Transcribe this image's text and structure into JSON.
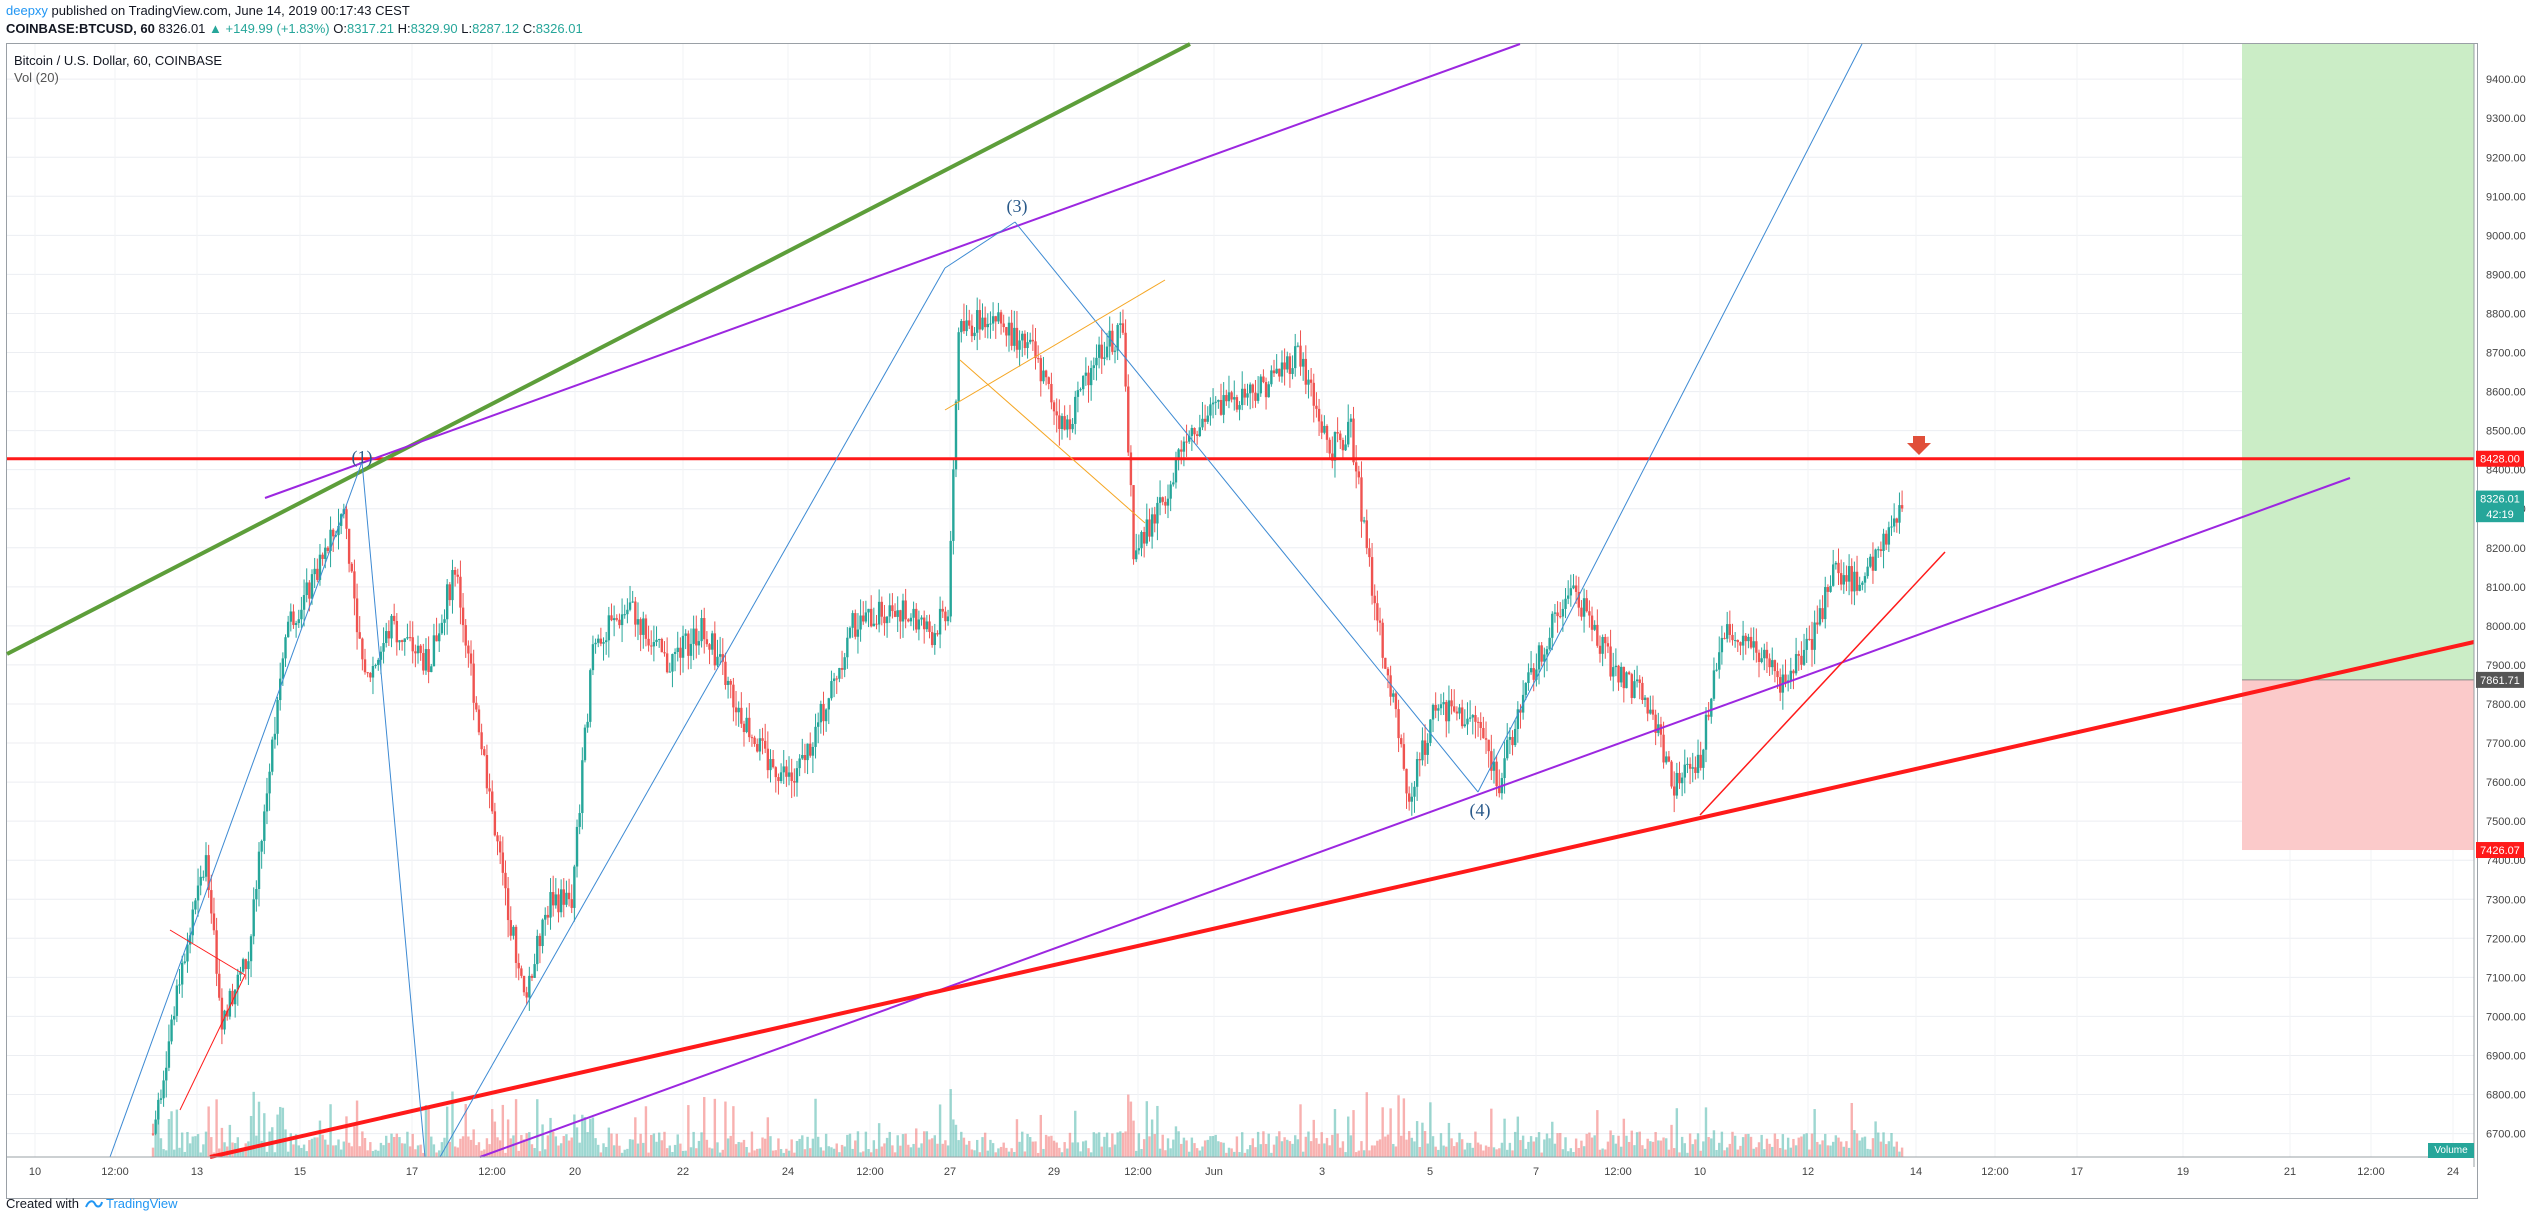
{
  "header": {
    "author": "deepxy",
    "published": "published on TradingView.com, June 14, 2019 00:17:43 CEST",
    "symbol": "COINBASE:BTCUSD, 60",
    "last": "8326.01",
    "change": "▲ +149.99 (+1.83%)",
    "o_label": "O:",
    "o": "8317.21",
    "h_label": "H:",
    "h": "8329.90",
    "l_label": "L:",
    "l": "8287.12",
    "c_label": "C:",
    "c": "8326.01"
  },
  "pane": {
    "title": "Bitcoin / U.S. Dollar, 60, COINBASE",
    "volume_indicator": "Vol (20)",
    "volume_badge": "Volume"
  },
  "footer": {
    "created_with": "Created with",
    "brand": "TradingView"
  },
  "colors": {
    "up": "#26a69a",
    "down": "#ef5350",
    "resistance": "#ff1a1a",
    "channel": "#9c27e0",
    "trend_green": "#5d9e3a",
    "wave": "#3d8ad3",
    "target_zone": "#c8ecc3",
    "stop_zone": "#fbcaca"
  },
  "chart_data": {
    "type": "candlestick",
    "symbol": "BTCUSD",
    "exchange": "COINBASE",
    "interval": "60",
    "ylim": [
      6640,
      9490
    ],
    "y_ticks": [
      "9400.00",
      "9300.00",
      "9200.00",
      "9100.00",
      "9000.00",
      "8900.00",
      "8800.00",
      "8700.00",
      "8600.00",
      "8500.00",
      "8400.00",
      "8300.00",
      "8200.00",
      "8100.00",
      "8000.00",
      "7900.00",
      "7800.00",
      "7700.00",
      "7600.00",
      "7500.00",
      "7400.00",
      "7300.00",
      "7200.00",
      "7100.00",
      "7000.00",
      "6900.00",
      "6800.00",
      "6700.00"
    ],
    "x_ticks": [
      "10",
      "12:00",
      "13",
      "15",
      "17",
      "12:00",
      "20",
      "22",
      "24",
      "12:00",
      "27",
      "29",
      "12:00",
      "Jun",
      "3",
      "5",
      "7",
      "12:00",
      "10",
      "12",
      "14",
      "12:00",
      "17",
      "19",
      "21",
      "12:00",
      "24"
    ],
    "price_labels": [
      {
        "value": 8428.0,
        "text": "8428.00",
        "color": "#ff1a1a"
      },
      {
        "value": 8326.01,
        "text": "8326.01",
        "color": "#26a69a"
      },
      {
        "value": 8286.0,
        "text": "42:19",
        "color": "#26a69a"
      },
      {
        "value": 7861.71,
        "text": "7861.71",
        "color": "#555555"
      },
      {
        "value": 7426.07,
        "text": "7426.07",
        "color": "#ff1a1a"
      }
    ],
    "wave_labels": [
      "(1)",
      "(3)",
      "(4)"
    ],
    "key_path": [
      {
        "t": 0,
        "p": 6700
      },
      {
        "t": 5,
        "p": 7100
      },
      {
        "t": 10,
        "p": 7400
      },
      {
        "t": 13,
        "p": 7000
      },
      {
        "t": 18,
        "p": 7150
      },
      {
        "t": 25,
        "p": 8000
      },
      {
        "t": 30,
        "p": 8100
      },
      {
        "t": 36,
        "p": 8300
      },
      {
        "t": 40,
        "p": 7850
      },
      {
        "t": 45,
        "p": 8000
      },
      {
        "t": 52,
        "p": 7900
      },
      {
        "t": 57,
        "p": 8150
      },
      {
        "t": 62,
        "p": 7700
      },
      {
        "t": 66,
        "p": 7350
      },
      {
        "t": 70,
        "p": 7050
      },
      {
        "t": 75,
        "p": 7300
      },
      {
        "t": 79,
        "p": 7300
      },
      {
        "t": 83,
        "p": 7950
      },
      {
        "t": 90,
        "p": 8050
      },
      {
        "t": 97,
        "p": 7900
      },
      {
        "t": 104,
        "p": 8000
      },
      {
        "t": 110,
        "p": 7800
      },
      {
        "t": 116,
        "p": 7650
      },
      {
        "t": 121,
        "p": 7600
      },
      {
        "t": 127,
        "p": 7800
      },
      {
        "t": 132,
        "p": 8000
      },
      {
        "t": 140,
        "p": 8050
      },
      {
        "t": 147,
        "p": 7980
      },
      {
        "t": 150,
        "p": 8050
      },
      {
        "t": 152,
        "p": 8750
      },
      {
        "t": 158,
        "p": 8800
      },
      {
        "t": 166,
        "p": 8700
      },
      {
        "t": 172,
        "p": 8500
      },
      {
        "t": 178,
        "p": 8700
      },
      {
        "t": 183,
        "p": 8750
      },
      {
        "t": 185,
        "p": 8200
      },
      {
        "t": 190,
        "p": 8300
      },
      {
        "t": 195,
        "p": 8500
      },
      {
        "t": 203,
        "p": 8580
      },
      {
        "t": 210,
        "p": 8620
      },
      {
        "t": 216,
        "p": 8700
      },
      {
        "t": 222,
        "p": 8450
      },
      {
        "t": 226,
        "p": 8500
      },
      {
        "t": 230,
        "p": 8100
      },
      {
        "t": 234,
        "p": 7800
      },
      {
        "t": 237,
        "p": 7550
      },
      {
        "t": 242,
        "p": 7800
      },
      {
        "t": 250,
        "p": 7750
      },
      {
        "t": 254,
        "p": 7600
      },
      {
        "t": 258,
        "p": 7800
      },
      {
        "t": 264,
        "p": 8000
      },
      {
        "t": 268,
        "p": 8100
      },
      {
        "t": 275,
        "p": 7900
      },
      {
        "t": 282,
        "p": 7800
      },
      {
        "t": 287,
        "p": 7600
      },
      {
        "t": 292,
        "p": 7650
      },
      {
        "t": 296,
        "p": 8000
      },
      {
        "t": 302,
        "p": 7950
      },
      {
        "t": 307,
        "p": 7850
      },
      {
        "t": 313,
        "p": 7950
      },
      {
        "t": 317,
        "p": 8150
      },
      {
        "t": 322,
        "p": 8100
      },
      {
        "t": 326,
        "p": 8200
      },
      {
        "t": 330,
        "p": 8326
      }
    ]
  }
}
